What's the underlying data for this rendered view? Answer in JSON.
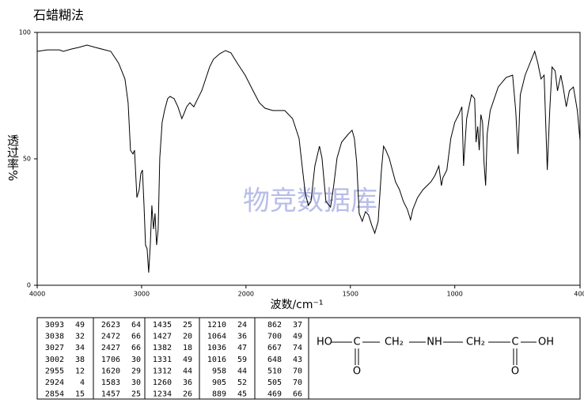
{
  "chart_data": {
    "type": "line",
    "title": "石蜡糊法",
    "y_label": "透过率%",
    "x_label": "波数/cm⁻¹",
    "watermark": "物竞数据库",
    "color": "#000000",
    "xlim": [
      4000,
      400
    ],
    "x_scale_break": 2000,
    "ylim": [
      0,
      100
    ],
    "xticks": [
      4000,
      3000,
      2000,
      1500,
      1000,
      400
    ],
    "yticks": [
      0,
      50,
      100
    ],
    "x": [
      4000,
      3902,
      3788,
      3750,
      3674,
      3598,
      3523,
      3447,
      3295,
      3220,
      3159,
      3129,
      3106,
      3083,
      3068,
      3045,
      3023,
      3008,
      2992,
      2977,
      2962,
      2947,
      2932,
      2917,
      2902,
      2886,
      2871,
      2856,
      2841,
      2826,
      2803,
      2780,
      2750,
      2727,
      2689,
      2652,
      2614,
      2598,
      2568,
      2538,
      2500,
      2462,
      2424,
      2386,
      2348,
      2311,
      2250,
      2197,
      2144,
      2083,
      2008,
      1966,
      1936,
      1909,
      1871,
      1814,
      1777,
      1746,
      1731,
      1716,
      1701,
      1689,
      1670,
      1648,
      1636,
      1617,
      1595,
      1580,
      1564,
      1542,
      1511,
      1492,
      1481,
      1470,
      1458,
      1443,
      1428,
      1413,
      1398,
      1383,
      1367,
      1352,
      1341,
      1330,
      1314,
      1299,
      1284,
      1265,
      1246,
      1227,
      1212,
      1201,
      1178,
      1152,
      1114,
      1095,
      1076,
      1064,
      1057,
      1038,
      1019,
      1000,
      981,
      966,
      958,
      943,
      920,
      905,
      898,
      890,
      883,
      875,
      867,
      860,
      852,
      845,
      830,
      792,
      754,
      723,
      708,
      697,
      686,
      663,
      640,
      617,
      602,
      587,
      572,
      557,
      545,
      534,
      519,
      508,
      492,
      481,
      466,
      451,
      432,
      413,
      400
    ],
    "values": [
      92.5,
      93.1,
      93.1,
      92.5,
      93.4,
      94.1,
      95.0,
      94.1,
      92.5,
      87.8,
      81.6,
      72.2,
      53.4,
      51.9,
      53.4,
      34.7,
      37.8,
      44.1,
      45.6,
      31.6,
      15.9,
      14.4,
      5.0,
      15.9,
      31.6,
      22.2,
      28.4,
      15.9,
      22.2,
      50.3,
      64.4,
      69.1,
      73.8,
      74.7,
      73.8,
      70.6,
      65.9,
      67.5,
      70.6,
      72.2,
      70.6,
      73.8,
      76.9,
      81.6,
      86.3,
      89.4,
      91.6,
      92.8,
      91.9,
      87.8,
      83.1,
      76.9,
      72.2,
      70.0,
      69.1,
      69.1,
      65.9,
      58.1,
      47.2,
      36.3,
      31.6,
      33.1,
      47.2,
      55.0,
      50.3,
      33.1,
      30.9,
      39.4,
      50.3,
      56.6,
      59.7,
      61.3,
      58.1,
      48.8,
      28.4,
      25.3,
      29.1,
      27.8,
      23.8,
      20.6,
      25.3,
      44.7,
      55.0,
      53.4,
      50.3,
      45.6,
      40.9,
      37.8,
      33.1,
      30.0,
      25.9,
      30.0,
      34.7,
      37.8,
      40.9,
      43.4,
      47.2,
      39.4,
      42.5,
      45.6,
      58.1,
      64.4,
      67.5,
      70.6,
      47.2,
      65.9,
      75.3,
      73.8,
      56.6,
      62.8,
      53.4,
      67.5,
      64.4,
      48.8,
      39.4,
      59.7,
      69.1,
      78.4,
      82.2,
      83.1,
      69.1,
      51.9,
      75.3,
      83.1,
      87.8,
      92.5,
      87.8,
      81.6,
      83.1,
      45.6,
      69.1,
      86.3,
      84.7,
      76.9,
      83.1,
      78.4,
      70.6,
      76.9,
      78.4,
      69.1,
      57.2
    ]
  },
  "peak_table": {
    "columns": [
      [
        [
          "3093",
          "49"
        ],
        [
          "3038",
          "32"
        ],
        [
          "3027",
          "34"
        ],
        [
          "3002",
          "38"
        ],
        [
          "2955",
          "12"
        ],
        [
          "2924",
          "4"
        ],
        [
          "2854",
          "15"
        ]
      ],
      [
        [
          "2623",
          "64"
        ],
        [
          "2472",
          "66"
        ],
        [
          "2427",
          "66"
        ],
        [
          "1706",
          "30"
        ],
        [
          "1620",
          "29"
        ],
        [
          "1583",
          "30"
        ],
        [
          "1457",
          "25"
        ]
      ],
      [
        [
          "1435",
          "25"
        ],
        [
          "1427",
          "20"
        ],
        [
          "1382",
          "18"
        ],
        [
          "1331",
          "49"
        ],
        [
          "1312",
          "44"
        ],
        [
          "1260",
          "36"
        ],
        [
          "1234",
          "26"
        ]
      ],
      [
        [
          "1210",
          "24"
        ],
        [
          "1064",
          "36"
        ],
        [
          "1036",
          "47"
        ],
        [
          "1016",
          "59"
        ],
        [
          "958",
          "44"
        ],
        [
          "905",
          "52"
        ],
        [
          "889",
          "45"
        ]
      ],
      [
        [
          "862",
          "37"
        ],
        [
          "700",
          "49"
        ],
        [
          "667",
          "74"
        ],
        [
          "648",
          "43"
        ],
        [
          "510",
          "70"
        ],
        [
          "505",
          "70"
        ],
        [
          "469",
          "66"
        ]
      ]
    ]
  },
  "structure": {
    "atoms": [
      "HO",
      "C",
      "CH₂",
      "NH",
      "CH₂",
      "C",
      "OH",
      "O",
      "O"
    ]
  }
}
